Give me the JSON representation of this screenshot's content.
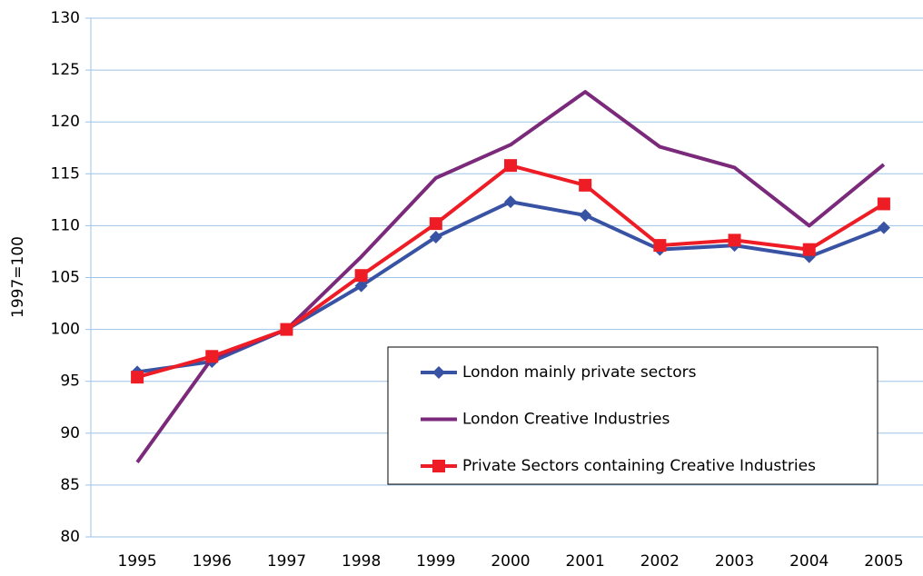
{
  "chart_data": {
    "type": "line",
    "y_label": "1997=100",
    "categories": [
      "1995",
      "1996",
      "1997",
      "1998",
      "1999",
      "2000",
      "2001",
      "2002",
      "2003",
      "2004",
      "2005"
    ],
    "series": [
      {
        "name": "London mainly private sectors",
        "color": "#3953a4",
        "marker": "diamond",
        "values": [
          95.9,
          96.9,
          100,
          104.2,
          108.9,
          112.3,
          111.0,
          107.7,
          108.1,
          107.0,
          109.8
        ]
      },
      {
        "name": "London Creative Industries",
        "color": "#7b2a7b",
        "marker": "none",
        "values": [
          87.2,
          97.2,
          100,
          107.0,
          114.6,
          117.8,
          122.9,
          117.6,
          115.6,
          110.0,
          115.9
        ]
      },
      {
        "name": "Private Sectors containing Creative Industries",
        "color": "#ee1c25",
        "marker": "square",
        "values": [
          95.4,
          97.4,
          100,
          105.2,
          110.2,
          115.8,
          113.9,
          108.1,
          108.6,
          107.7,
          112.1
        ]
      }
    ],
    "ylim": [
      80,
      130
    ],
    "yticks": [
      80,
      85,
      90,
      95,
      100,
      105,
      110,
      115,
      120,
      125,
      130
    ],
    "grid": true,
    "legend_position": "lower right"
  }
}
